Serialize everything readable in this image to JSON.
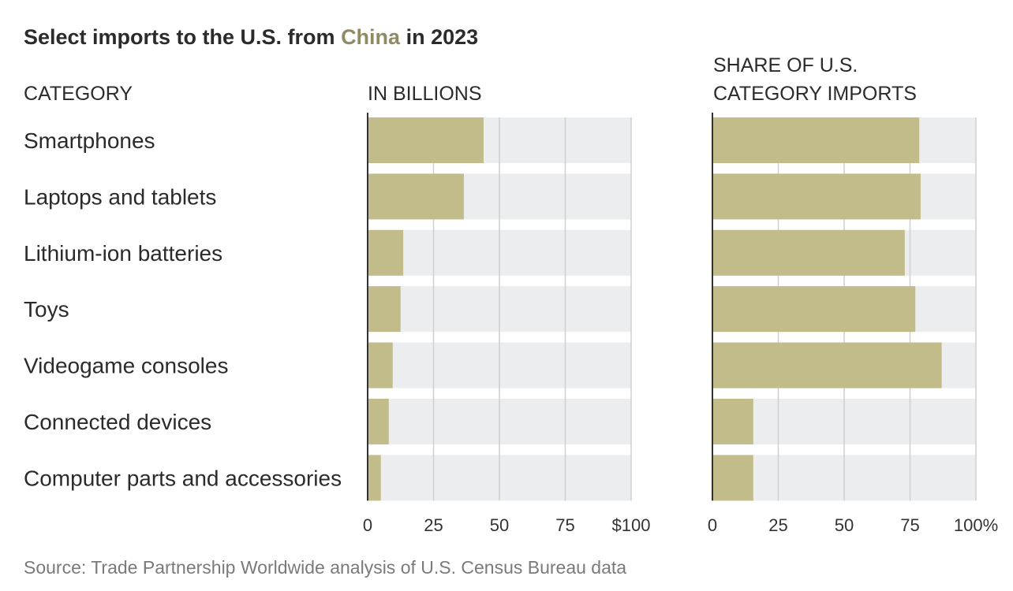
{
  "title": {
    "prefix": "Select imports to the U.S. from ",
    "highlight": "China",
    "suffix": " in 2023"
  },
  "colors": {
    "bar": "#c1bc8a",
    "track": "#ecedee",
    "grid": "#cfcfcf",
    "axis": "#333333",
    "accent": "#8f8a64"
  },
  "chart_data": [
    {
      "type": "bar",
      "orientation": "horizontal",
      "title": "IN BILLIONS",
      "category_header": "CATEGORY",
      "categories": [
        "Smartphones",
        "Laptops and tablets",
        "Lithium-ion batteries",
        "Toys",
        "Videogame consoles",
        "Connected devices",
        "Computer parts and accessories"
      ],
      "values": [
        44,
        36.5,
        13.5,
        12.5,
        9.5,
        8,
        5
      ],
      "xlim": [
        0,
        100
      ],
      "ticks": [
        0,
        25,
        50,
        75,
        100
      ],
      "tick_labels": [
        "0",
        "25",
        "50",
        "75",
        "$100"
      ],
      "unit": "billions of dollars",
      "grid": true
    },
    {
      "type": "bar",
      "orientation": "horizontal",
      "title_lines": [
        "SHARE OF U.S.",
        "CATEGORY IMPORTS"
      ],
      "categories": [
        "Smartphones",
        "Laptops and tablets",
        "Lithium-ion batteries",
        "Toys",
        "Videogame consoles",
        "Connected devices",
        "Computer parts and accessories"
      ],
      "values": [
        78.5,
        79,
        73,
        77,
        87,
        15.5,
        15.5
      ],
      "xlim": [
        0,
        100
      ],
      "ticks": [
        0,
        25,
        50,
        75,
        100
      ],
      "tick_labels": [
        "0",
        "25",
        "50",
        "75",
        "100%"
      ],
      "unit": "percent",
      "grid": true
    }
  ],
  "source": "Source: Trade Partnership Worldwide analysis of U.S. Census Bureau data"
}
